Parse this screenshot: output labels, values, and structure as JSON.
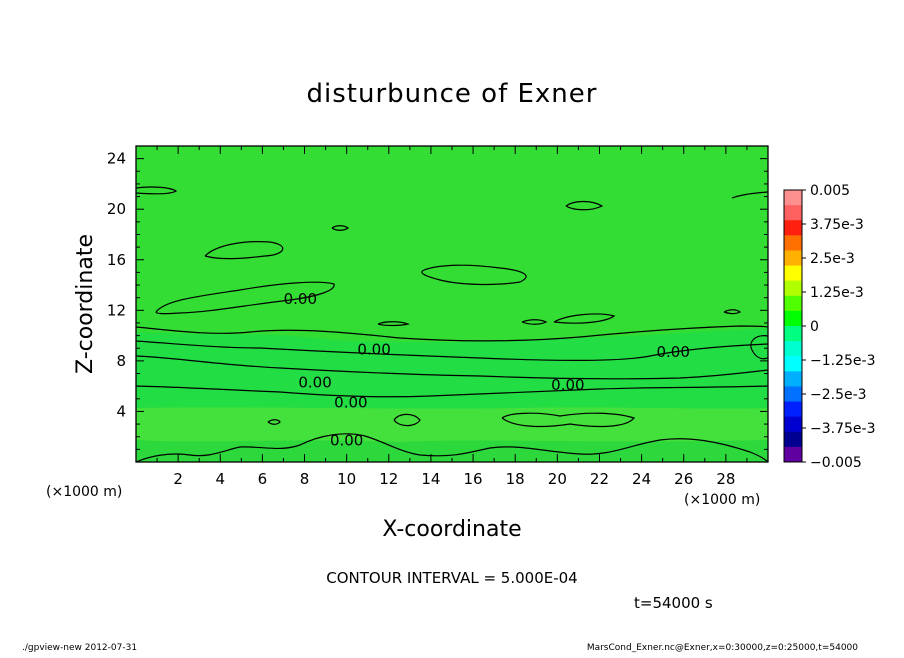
{
  "chart_data": {
    "type": "heatmap",
    "title": "disturbunce of Exner",
    "xlabel": "X-coordinate",
    "ylabel": "Z-coordinate",
    "x_unit": "(×1000 m)",
    "y_unit": "(×1000 m)",
    "xlim": [
      0,
      30
    ],
    "ylim": [
      0,
      25
    ],
    "x_ticks": [
      2,
      4,
      6,
      8,
      10,
      12,
      14,
      16,
      18,
      20,
      22,
      24,
      26,
      28
    ],
    "y_ticks": [
      4,
      8,
      12,
      16,
      20,
      24
    ],
    "contour_labels": [
      {
        "text": "0.00",
        "x": 7.8,
        "z": 12.9
      },
      {
        "text": "0.00",
        "x": 11.3,
        "z": 8.9
      },
      {
        "text": "0.00",
        "x": 25.5,
        "z": 8.7
      },
      {
        "text": "0.00",
        "x": 8.5,
        "z": 6.3
      },
      {
        "text": "0.00",
        "x": 20.5,
        "z": 6.1
      },
      {
        "text": "0.00",
        "x": 10.2,
        "z": 4.7
      },
      {
        "text": "0.00",
        "x": 10.0,
        "z": 1.7
      }
    ],
    "colorbar": {
      "tick_labels": [
        "0.005",
        "3.75e-3",
        "2.5e-3",
        "1.25e-3",
        "0",
        "−1.25e-3",
        "−2.5e-3",
        "−3.75e-3",
        "−0.005"
      ],
      "colors": [
        "#ff9090",
        "#ff6060",
        "#ff2010",
        "#ff7000",
        "#ffb000",
        "#ffff00",
        "#b0ff00",
        "#50ff00",
        "#00ff00",
        "#00ff80",
        "#00ffd0",
        "#00ffff",
        "#00b0ff",
        "#0070ff",
        "#0020ff",
        "#0000d0",
        "#000090",
        "#6000a0"
      ]
    },
    "contour_interval": "CONTOUR INTERVAL = 5.000E-04",
    "time": "t=54000 s"
  },
  "footer": {
    "left": "./gpview-new   2012-07-31",
    "right": "MarsCond_Exner.nc@Exner,x=0:30000,z=0:25000,t=54000"
  }
}
